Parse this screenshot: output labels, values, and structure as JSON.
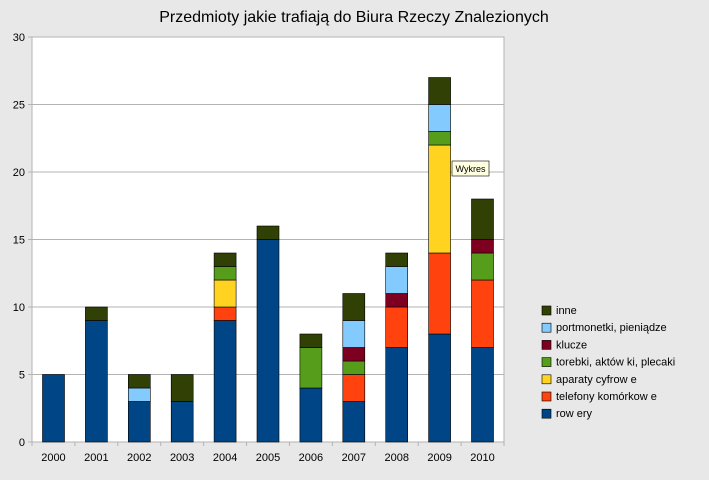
{
  "chart_data": {
    "type": "bar",
    "stacked": true,
    "title": "Przedmioty jakie trafiają do Biura Rzeczy Znalezionych",
    "categories": [
      "2000",
      "2001",
      "2002",
      "2003",
      "2004",
      "2005",
      "2006",
      "2007",
      "2008",
      "2009",
      "2010"
    ],
    "ylim": [
      0,
      30
    ],
    "yticks": [
      0,
      5,
      10,
      15,
      20,
      25,
      30
    ],
    "grid": true,
    "legend_position": "right",
    "series": [
      {
        "name": "row ery",
        "color": "#004586",
        "values": [
          5,
          9,
          3,
          3,
          9,
          15,
          4,
          3,
          7,
          8,
          7
        ]
      },
      {
        "name": "telefony komórkow e",
        "color": "#ff420e",
        "values": [
          0,
          0,
          0,
          0,
          1,
          0,
          0,
          2,
          3,
          6,
          5
        ]
      },
      {
        "name": "aparaty cyfrow e",
        "color": "#ffd320",
        "values": [
          0,
          0,
          0,
          0,
          2,
          0,
          0,
          0,
          0,
          8,
          0
        ]
      },
      {
        "name": "torebki, aktów ki, plecaki",
        "color": "#579d1c",
        "values": [
          0,
          0,
          0,
          0,
          1,
          0,
          3,
          1,
          0,
          1,
          2
        ]
      },
      {
        "name": "klucze",
        "color": "#7e0021",
        "values": [
          0,
          0,
          0,
          0,
          0,
          0,
          0,
          1,
          1,
          0,
          1
        ]
      },
      {
        "name": "portmonetki, pieniądze",
        "color": "#83caff",
        "values": [
          0,
          0,
          1,
          0,
          0,
          0,
          0,
          2,
          2,
          2,
          0
        ]
      },
      {
        "name": "inne",
        "color": "#314004",
        "values": [
          0,
          1,
          1,
          2,
          1,
          1,
          1,
          2,
          1,
          2,
          3
        ]
      }
    ],
    "tooltip": {
      "text": "Wykres"
    }
  }
}
